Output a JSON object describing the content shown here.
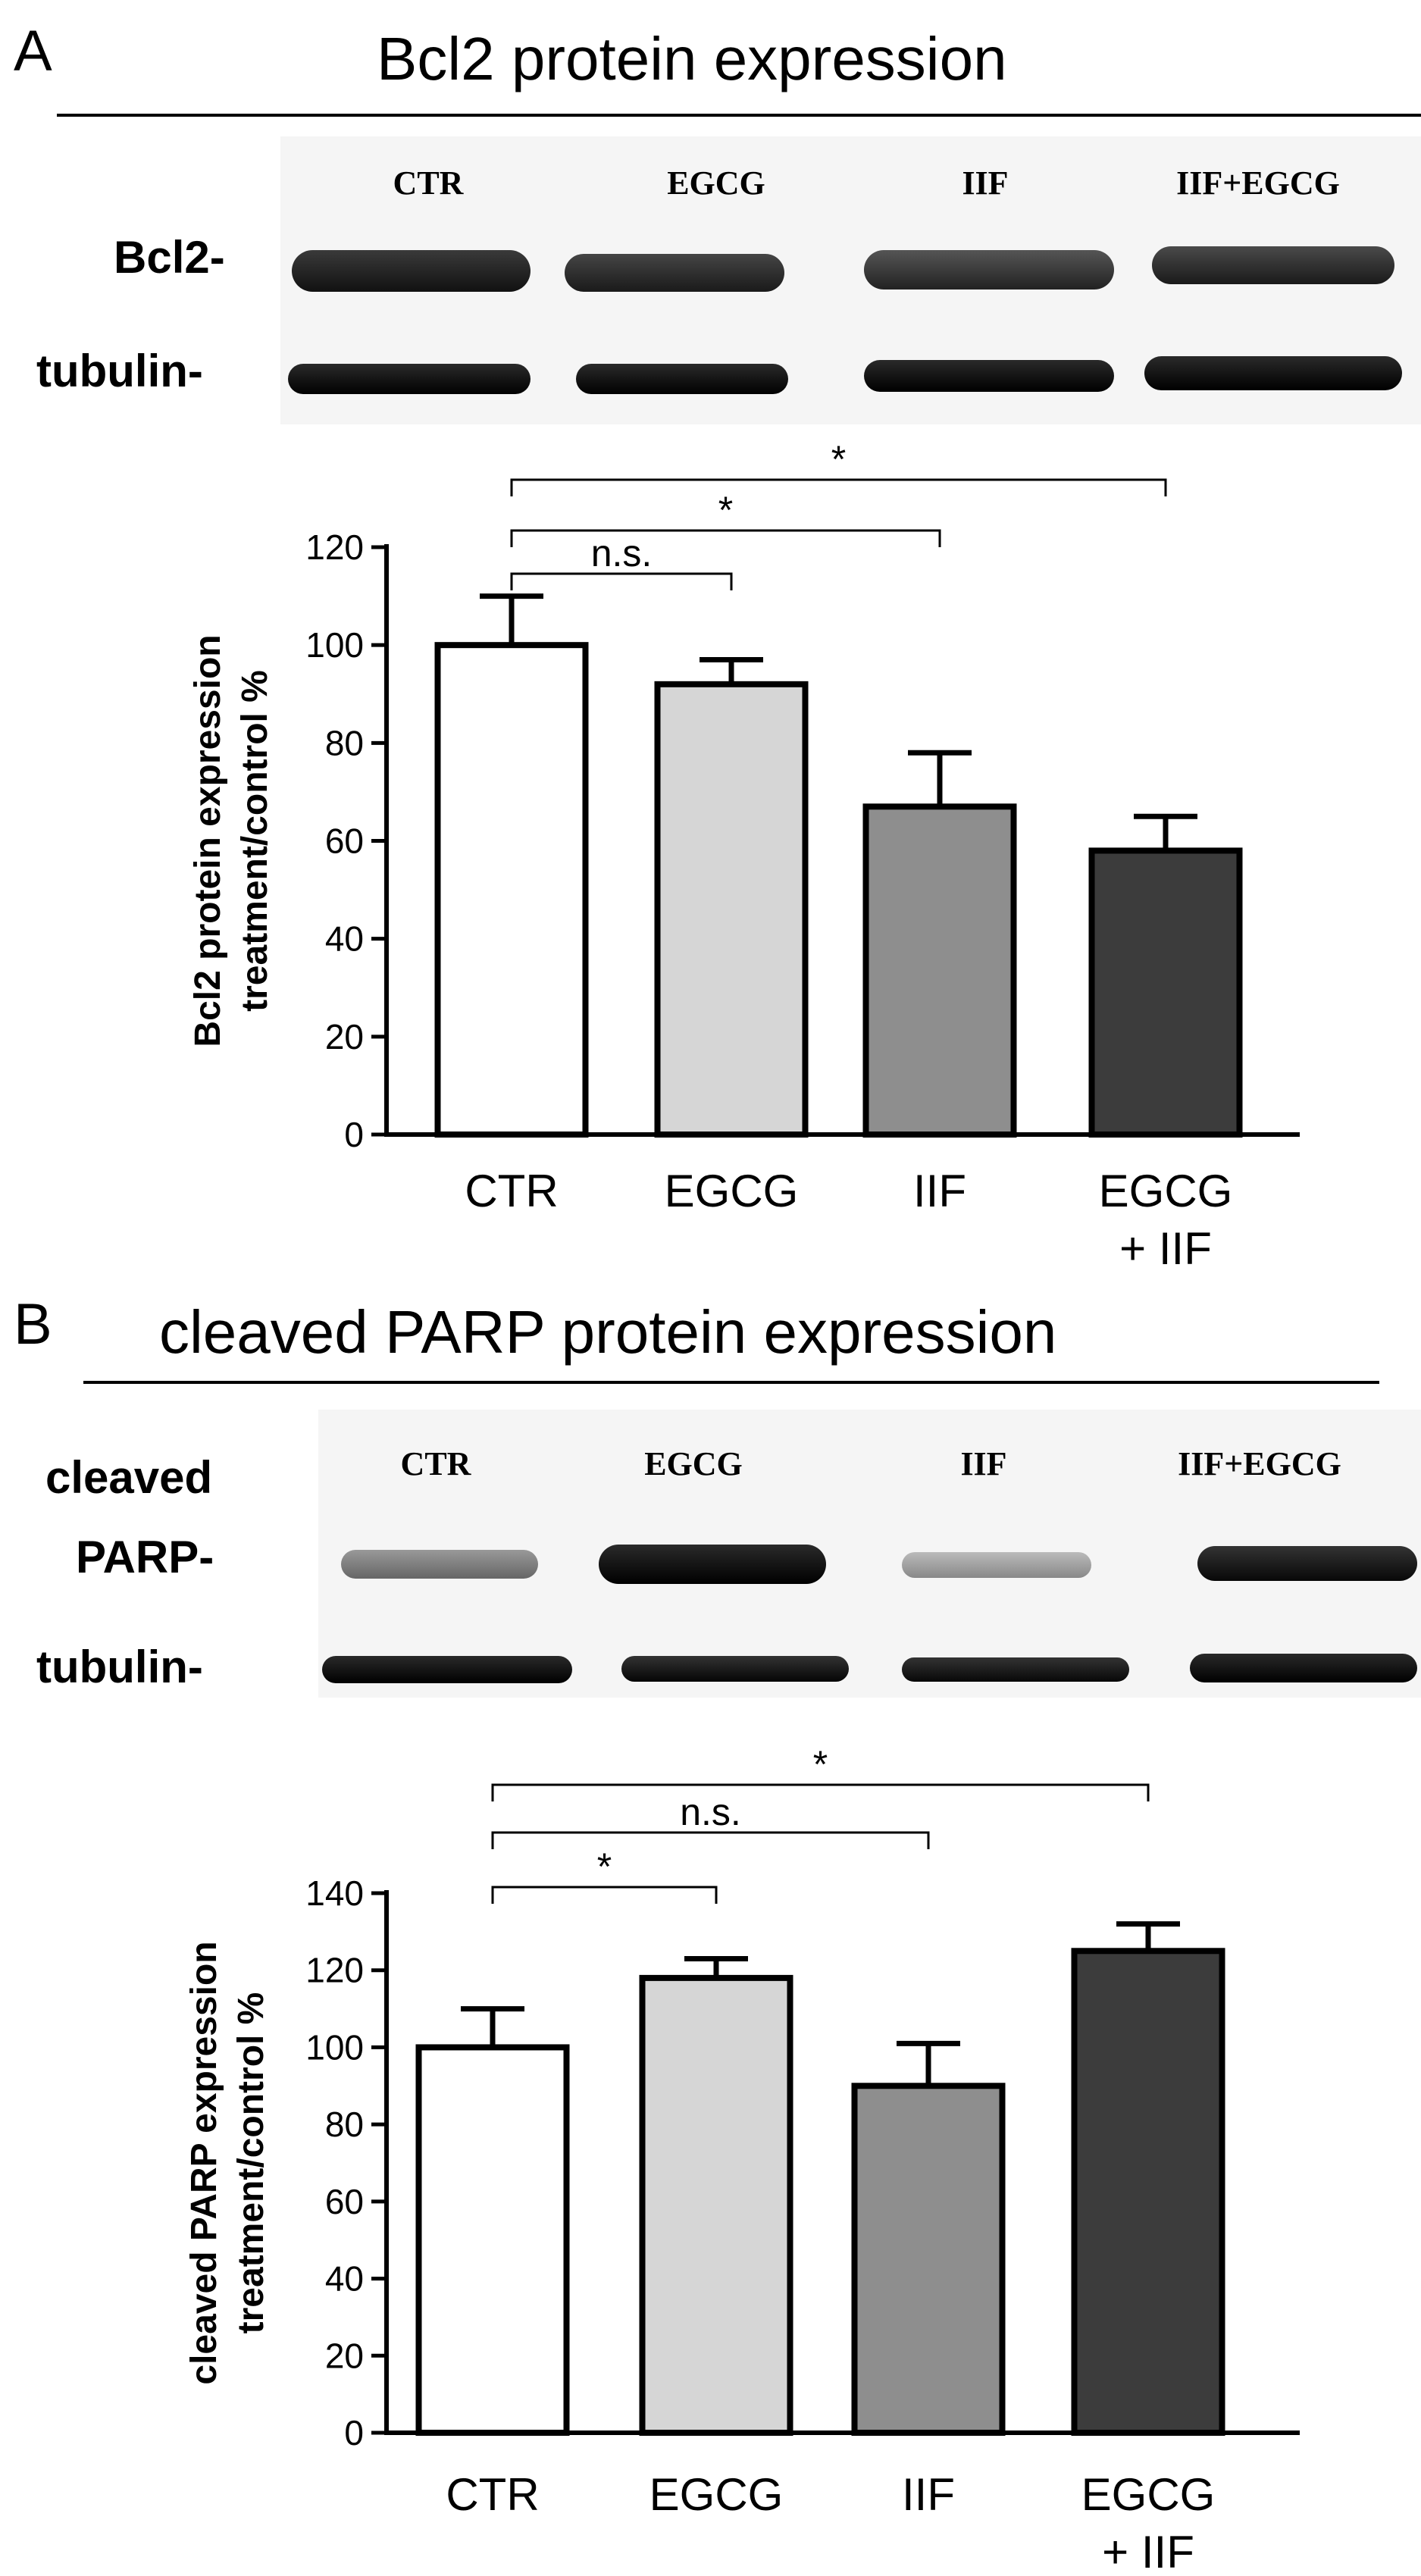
{
  "panels": [
    {
      "letter": "A",
      "title": "Bcl2 protein expression",
      "blot": {
        "lanes": [
          "CTR",
          "EGCG",
          "IIF",
          "IIF+EGCG"
        ],
        "rows": [
          "Bcl2-",
          "tubulin-"
        ]
      }
    },
    {
      "letter": "B",
      "title": "cleaved PARP protein expression",
      "blot": {
        "lanes": [
          "CTR",
          "EGCG",
          "IIF",
          "IIF+EGCG"
        ],
        "rows": [
          "cleaved",
          "PARP-",
          "tubulin-"
        ]
      }
    }
  ],
  "chart_data": [
    {
      "type": "bar",
      "categories": [
        "CTR",
        "EGCG",
        "IIF",
        "EGCG\n+ IIF"
      ],
      "values": [
        100,
        92,
        67,
        58
      ],
      "errors": [
        10,
        5,
        11,
        7
      ],
      "ylabel": "Bcl2 protein expression\ntreatment/control %",
      "ylim": [
        0,
        120
      ],
      "yticks": [
        0,
        20,
        40,
        60,
        80,
        100,
        120
      ],
      "fills": [
        "#ffffff",
        "#d6d6d6",
        "#8e8e8e",
        "#3c3c3c"
      ],
      "grid": false,
      "significance": [
        {
          "from": 0,
          "to": 1,
          "label": "n.s."
        },
        {
          "from": 0,
          "to": 2,
          "label": "*"
        },
        {
          "from": 0,
          "to": 3,
          "label": "*"
        }
      ]
    },
    {
      "type": "bar",
      "categories": [
        "CTR",
        "EGCG",
        "IIF",
        "EGCG\n+ IIF"
      ],
      "values": [
        100,
        118,
        90,
        125
      ],
      "errors": [
        10,
        5,
        11,
        7
      ],
      "ylabel": "cleaved PARP  expression\ntreatment/control %",
      "ylim": [
        0,
        140
      ],
      "yticks": [
        0,
        20,
        40,
        60,
        80,
        100,
        120,
        140
      ],
      "fills": [
        "#ffffff",
        "#d6d6d6",
        "#8e8e8e",
        "#3c3c3c"
      ],
      "grid": false,
      "significance": [
        {
          "from": 0,
          "to": 1,
          "label": "*"
        },
        {
          "from": 0,
          "to": 2,
          "label": "n.s."
        },
        {
          "from": 0,
          "to": 3,
          "label": "*"
        }
      ]
    }
  ]
}
